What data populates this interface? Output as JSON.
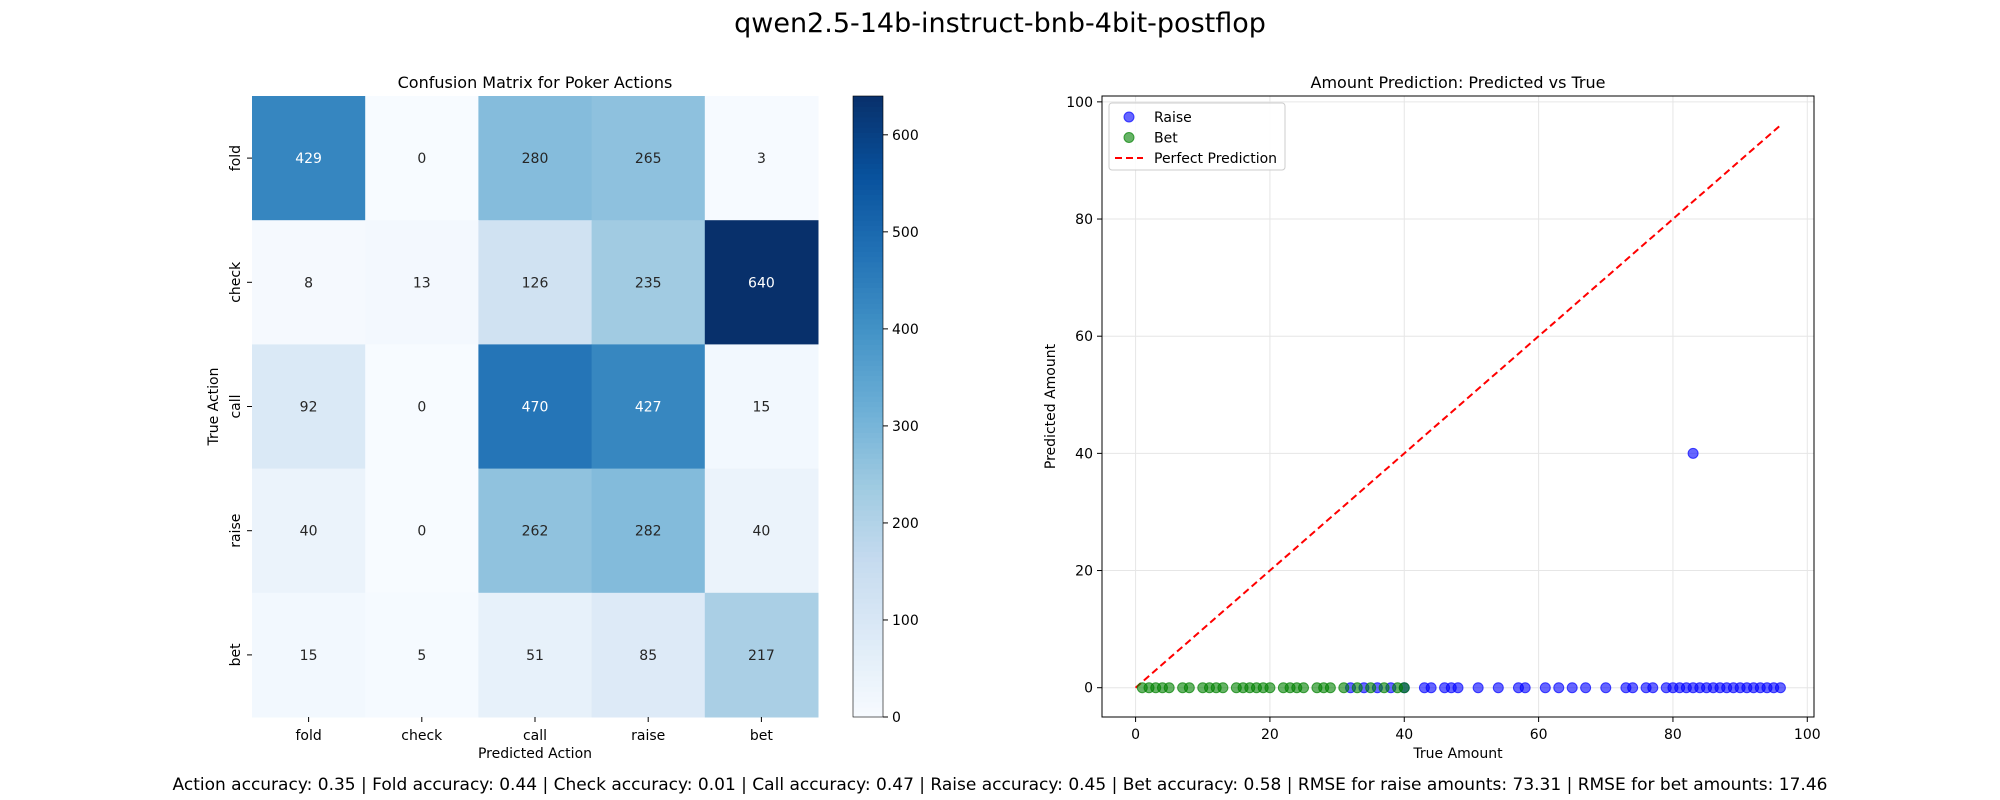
{
  "figure": {
    "title": "qwen2.5-14b-instruct-bnb-4bit-postflop",
    "footer": "Action accuracy: 0.35 | Fold accuracy: 0.44 | Check accuracy: 0.01 | Call accuracy: 0.47 | Raise accuracy: 0.45 | Bet accuracy: 0.58 | RMSE for raise amounts: 73.31 | RMSE for bet amounts: 17.46"
  },
  "chart_data": [
    {
      "type": "heatmap",
      "title": "Confusion Matrix for Poker Actions",
      "xlabel": "Predicted Action",
      "ylabel": "True Action",
      "x_categories": [
        "fold",
        "check",
        "call",
        "raise",
        "bet"
      ],
      "y_categories": [
        "fold",
        "check",
        "call",
        "raise",
        "bet"
      ],
      "values": [
        [
          429,
          0,
          280,
          265,
          3
        ],
        [
          8,
          13,
          126,
          235,
          640
        ],
        [
          92,
          0,
          470,
          427,
          15
        ],
        [
          40,
          0,
          262,
          282,
          40
        ],
        [
          15,
          5,
          51,
          85,
          217
        ]
      ],
      "colormap": "Blues",
      "colorbar": {
        "range": [
          0,
          640
        ],
        "ticks": [
          0,
          100,
          200,
          300,
          400,
          500,
          600
        ]
      }
    },
    {
      "type": "scatter",
      "title": "Amount Prediction: Predicted vs True",
      "xlabel": "True Amount",
      "ylabel": "Predicted Amount",
      "xlim": [
        -5,
        101
      ],
      "ylim": [
        -5,
        101
      ],
      "xticks": [
        0,
        20,
        40,
        60,
        80,
        100
      ],
      "yticks": [
        0,
        20,
        40,
        60,
        80,
        100
      ],
      "grid": true,
      "legend": {
        "placement": "upper-left",
        "entries": [
          "Raise",
          "Bet",
          "Perfect Prediction"
        ]
      },
      "series": [
        {
          "name": "Raise",
          "color": "#0000ff",
          "points": [
            [
              83,
              40
            ],
            [
              32,
              0
            ],
            [
              34,
              0
            ],
            [
              36,
              0
            ],
            [
              38,
              0
            ],
            [
              40,
              0
            ],
            [
              43,
              0
            ],
            [
              44,
              0
            ],
            [
              46,
              0
            ],
            [
              47,
              0
            ],
            [
              48,
              0
            ],
            [
              51,
              0
            ],
            [
              54,
              0
            ],
            [
              57,
              0
            ],
            [
              58,
              0
            ],
            [
              61,
              0
            ],
            [
              63,
              0
            ],
            [
              65,
              0
            ],
            [
              67,
              0
            ],
            [
              70,
              0
            ],
            [
              73,
              0
            ],
            [
              74,
              0
            ],
            [
              76,
              0
            ],
            [
              77,
              0
            ],
            [
              79,
              0
            ],
            [
              80,
              0
            ],
            [
              81,
              0
            ],
            [
              82,
              0
            ],
            [
              83,
              0
            ],
            [
              84,
              0
            ],
            [
              85,
              0
            ],
            [
              86,
              0
            ],
            [
              87,
              0
            ],
            [
              88,
              0
            ],
            [
              89,
              0
            ],
            [
              90,
              0
            ],
            [
              91,
              0
            ],
            [
              92,
              0
            ],
            [
              93,
              0
            ],
            [
              94,
              0
            ],
            [
              95,
              0
            ],
            [
              96,
              0
            ]
          ]
        },
        {
          "name": "Bet",
          "color": "#008000",
          "points": [
            [
              1,
              0
            ],
            [
              2,
              0
            ],
            [
              3,
              0
            ],
            [
              4,
              0
            ],
            [
              5,
              0
            ],
            [
              7,
              0
            ],
            [
              8,
              0
            ],
            [
              10,
              0
            ],
            [
              11,
              0
            ],
            [
              12,
              0
            ],
            [
              13,
              0
            ],
            [
              15,
              0
            ],
            [
              16,
              0
            ],
            [
              17,
              0
            ],
            [
              18,
              0
            ],
            [
              19,
              0
            ],
            [
              20,
              0
            ],
            [
              22,
              0
            ],
            [
              23,
              0
            ],
            [
              24,
              0
            ],
            [
              25,
              0
            ],
            [
              27,
              0
            ],
            [
              28,
              0
            ],
            [
              29,
              0
            ],
            [
              31,
              0
            ],
            [
              33,
              0
            ],
            [
              35,
              0
            ],
            [
              37,
              0
            ],
            [
              39,
              0
            ],
            [
              40,
              0
            ]
          ]
        },
        {
          "name": "Perfect Prediction",
          "color": "#ff0000",
          "line": [
            [
              0,
              0
            ],
            [
              96,
              96
            ]
          ],
          "style": "dashed"
        }
      ]
    }
  ]
}
